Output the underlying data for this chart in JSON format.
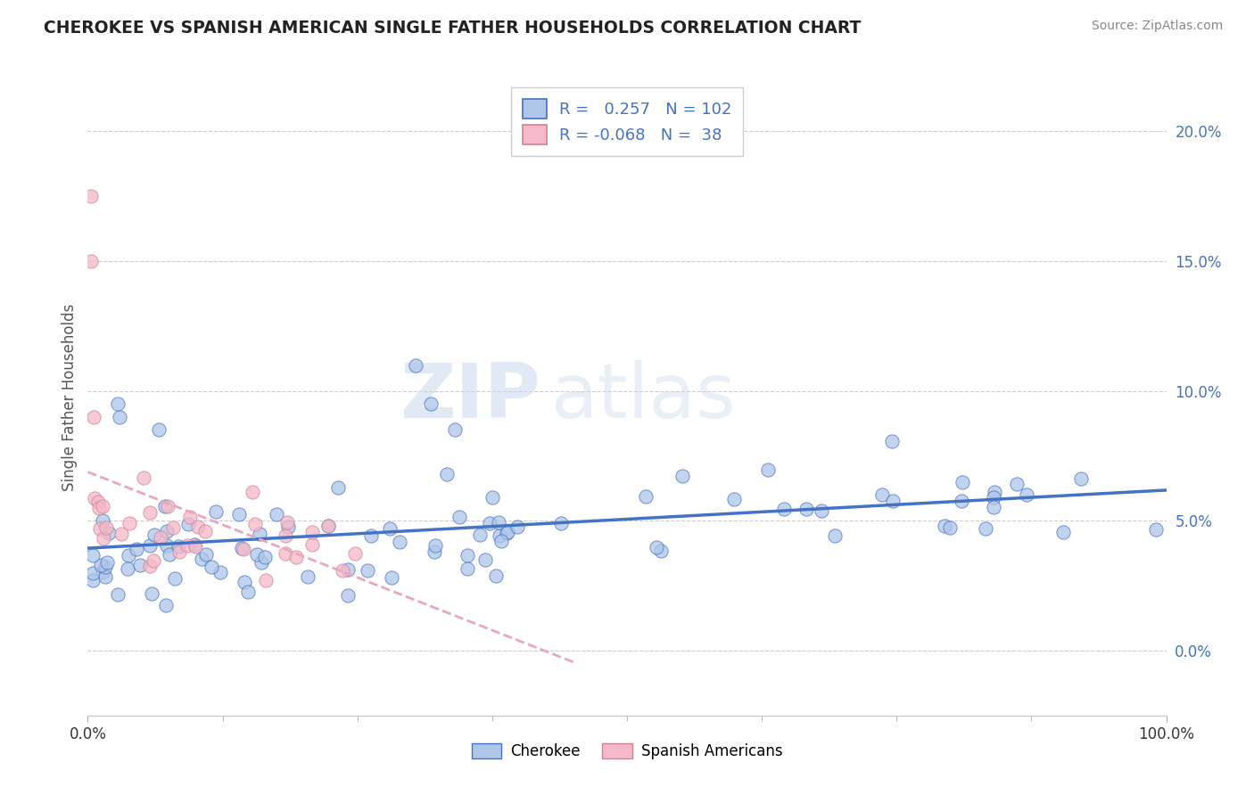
{
  "title": "CHEROKEE VS SPANISH AMERICAN SINGLE FATHER HOUSEHOLDS CORRELATION CHART",
  "source": "Source: ZipAtlas.com",
  "ylabel": "Single Father Households",
  "y_ticks": [
    "0.0%",
    "5.0%",
    "10.0%",
    "15.0%",
    "20.0%"
  ],
  "y_tick_vals": [
    0.0,
    5.0,
    10.0,
    15.0,
    20.0
  ],
  "xlim": [
    0,
    100
  ],
  "ylim": [
    -2.5,
    22
  ],
  "legend_label1": "Cherokee",
  "legend_label2": "Spanish Americans",
  "R1": 0.257,
  "N1": 102,
  "R2": -0.068,
  "N2": 38,
  "color_blue": "#AEC6E8",
  "color_pink": "#F4B8C8",
  "line_blue": "#4472C4",
  "line_pink_solid": "#E8A0B0",
  "watermark_zip": "ZIP",
  "watermark_atlas": "atlas",
  "background_color": "#FFFFFF",
  "grid_color": "#CCCCCC"
}
